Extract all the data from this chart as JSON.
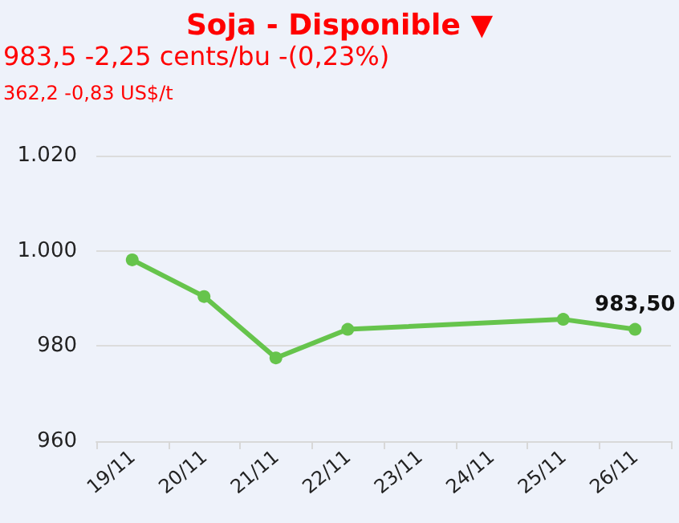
{
  "chart_data": {
    "type": "line",
    "title": "Soja - Disponible ▼",
    "subtitle": "983,5 -2,25 cents/bu -(0,23%)",
    "annotations": [
      "362,2 -0,83 US$/t"
    ],
    "categories": [
      "19/11",
      "20/11",
      "21/11",
      "22/11",
      "23/11",
      "24/11",
      "25/11",
      "26/11"
    ],
    "series": [
      {
        "color": "#66c44c",
        "x": [
          "19/11",
          "20/11",
          "21/11",
          "22/11",
          "25/11",
          "26/11"
        ],
        "values": [
          998.1,
          990.4,
          977.5,
          983.5,
          985.6,
          983.5
        ],
        "value_labels": [
          null,
          null,
          null,
          null,
          null,
          "983,50"
        ]
      }
    ],
    "ylim": [
      960,
      1020
    ],
    "yticks": [
      {
        "value": 960,
        "label": "960"
      },
      {
        "value": 980,
        "label": "980"
      },
      {
        "value": 1000,
        "label": "1.000"
      },
      {
        "value": 1020,
        "label": "1.020"
      }
    ],
    "grid": "y",
    "marker": "circle",
    "line_style": "solid"
  }
}
